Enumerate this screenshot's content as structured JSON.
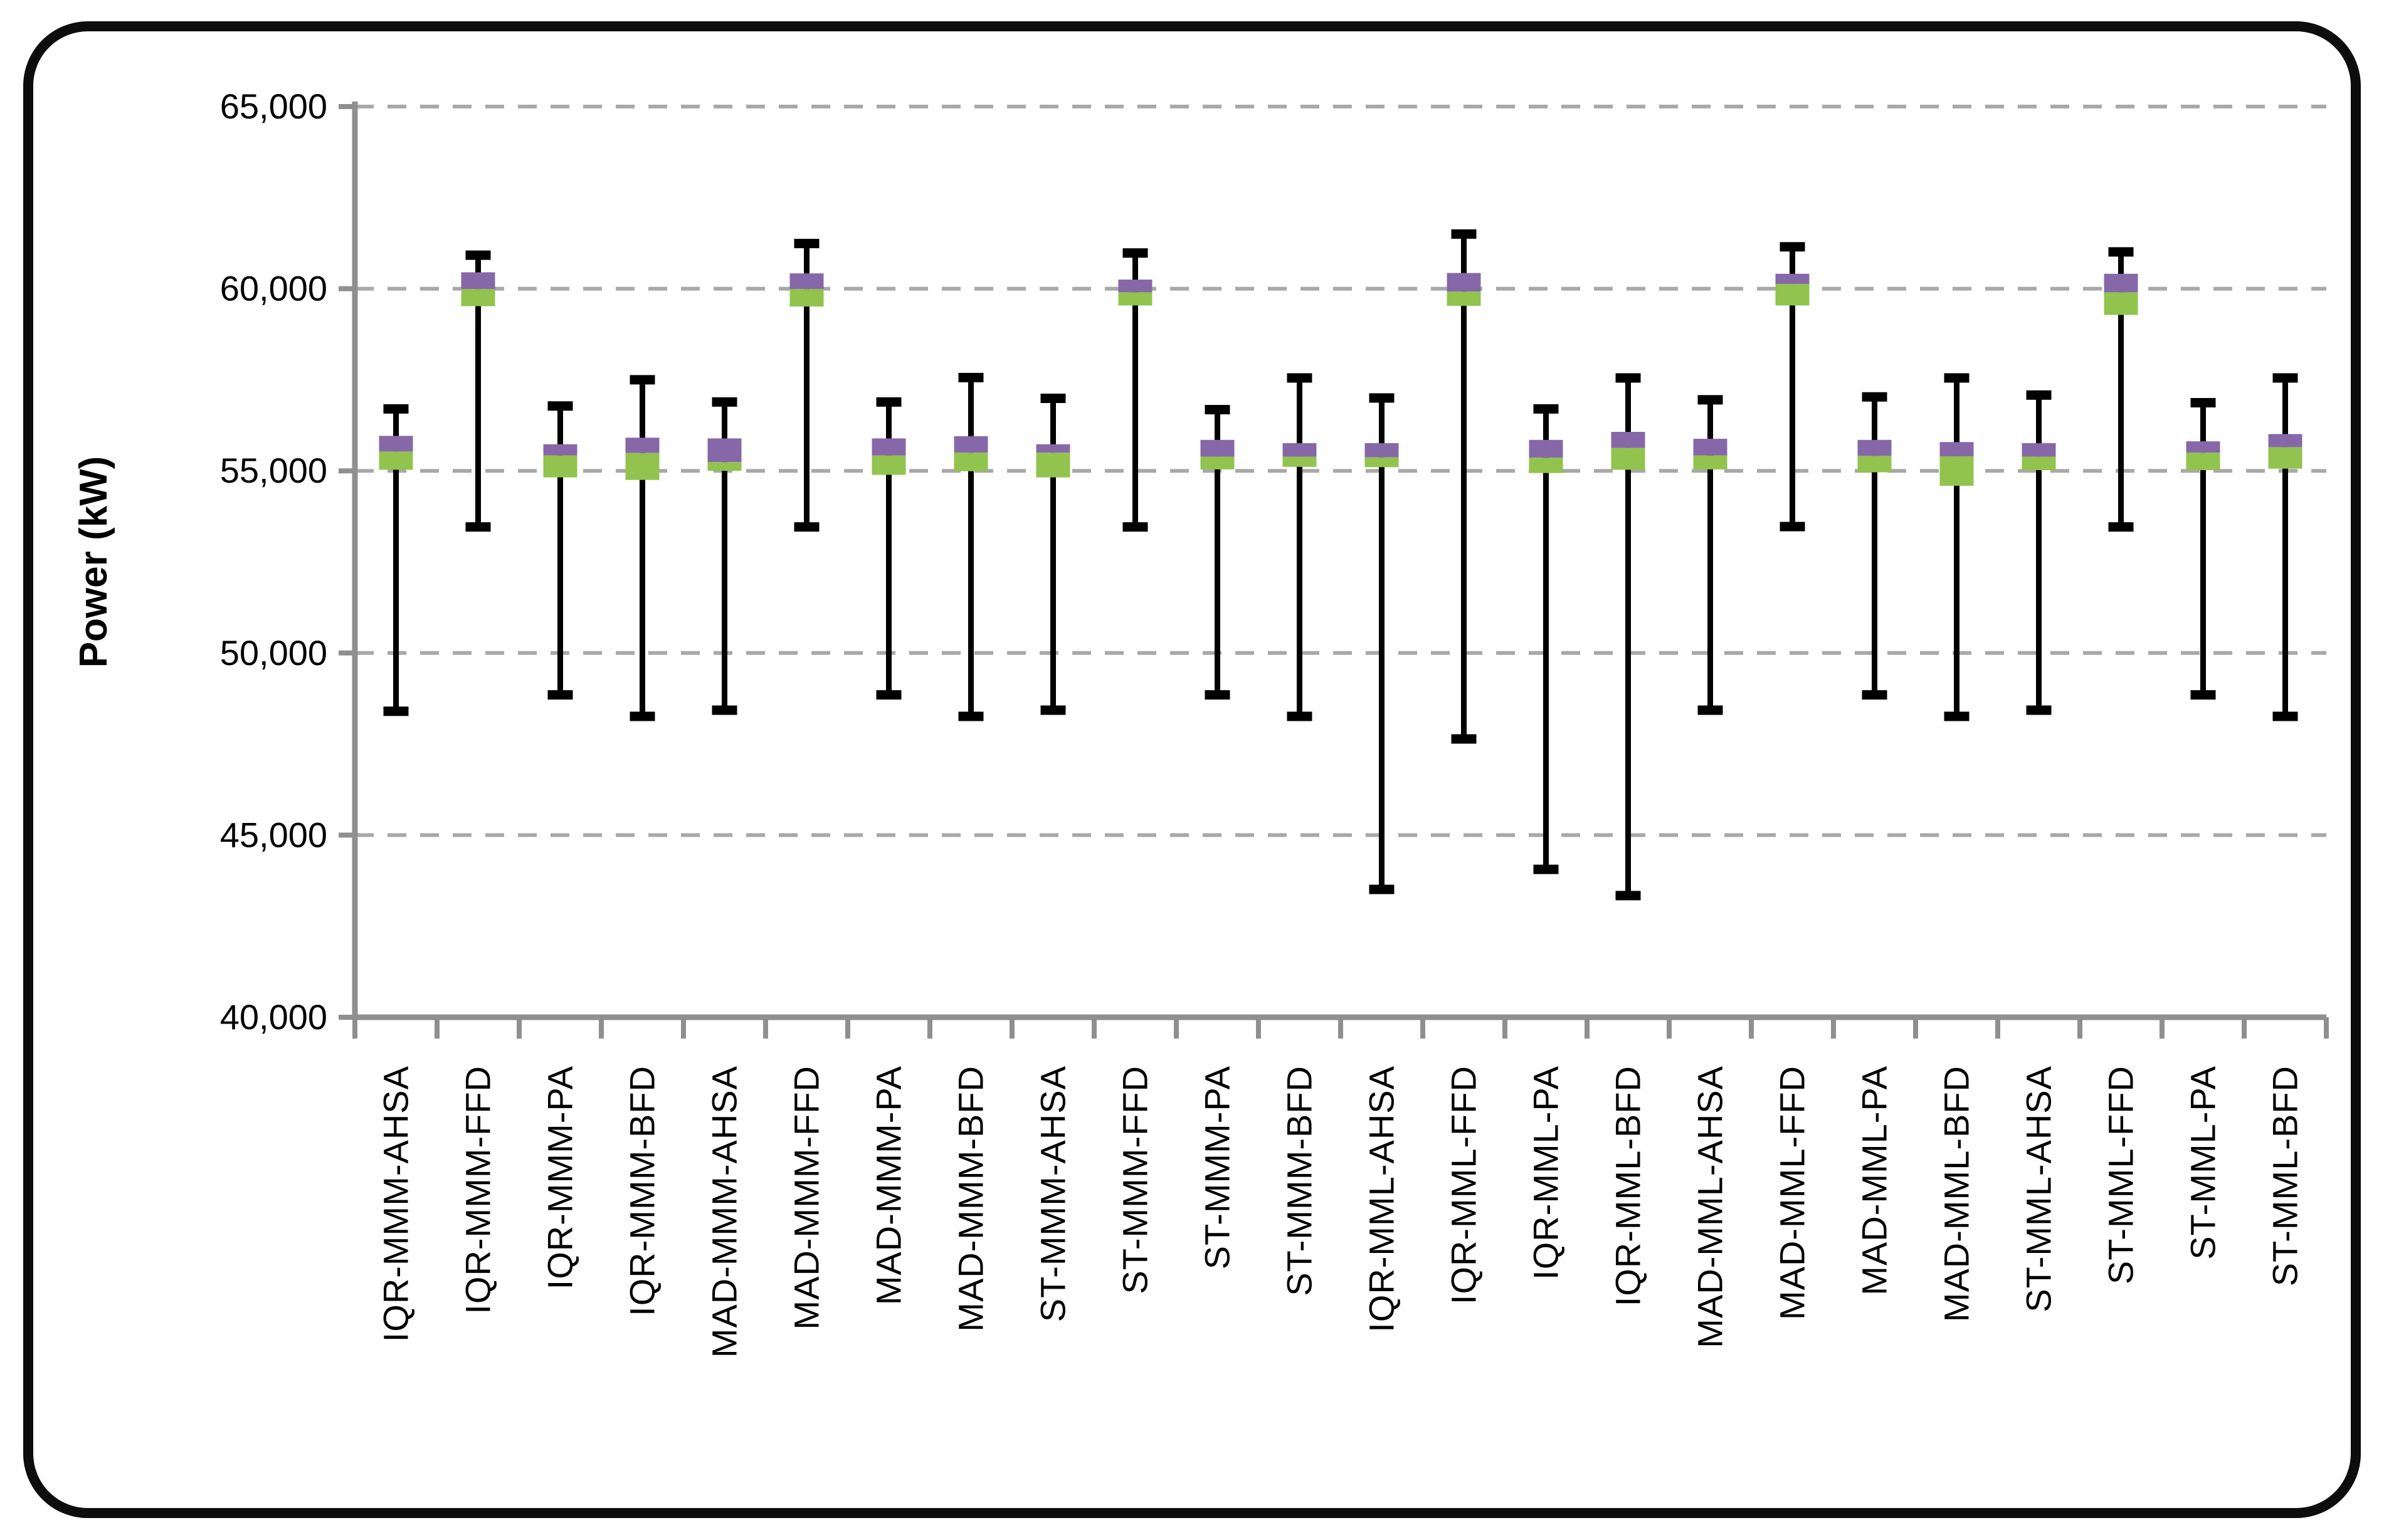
{
  "chart_data": {
    "type": "box-whisker",
    "title": "",
    "xlabel": "",
    "ylabel": "Power (kW)",
    "ylim": [
      40000,
      65000
    ],
    "ytick_step": 5000,
    "ytick_labels": [
      "40,000",
      "45,000",
      "50,000",
      "55,000",
      "60,000",
      "65,000"
    ],
    "grid": "horizontal-dashed",
    "legend": "none",
    "categories": [
      "IQR-MMM-AHSA",
      "IQR-MMM-FFD",
      "IQR-MMM-PA",
      "IQR-MMM-BFD",
      "MAD-MMM-AHSA",
      "MAD-MMM-FFD",
      "MAD-MMM-PA",
      "MAD-MMM-BFD",
      "ST-MMM-AHSA",
      "ST-MMM-FFD",
      "ST-MMM-PA",
      "ST-MMM-BFD",
      "IQR-MML-AHSA",
      "IQR-MML-FFD",
      "IQR-MML-PA",
      "IQR-MML-BFD",
      "MAD-MML-AHSA",
      "MAD-MML-FFD",
      "MAD-MML-PA",
      "MAD-MML-BFD",
      "ST-MML-AHSA",
      "ST-MML-FFD",
      "ST-MML-PA",
      "ST-MML-BFD"
    ],
    "series": [
      {
        "name": "IQR-MMM-AHSA",
        "min": 48400,
        "q1": 55030,
        "median": 55530,
        "q3": 55960,
        "max": 56700
      },
      {
        "name": "IQR-MMM-FFD",
        "min": 53460,
        "q1": 59520,
        "median": 59990,
        "q3": 60450,
        "max": 60920
      },
      {
        "name": "IQR-MMM-PA",
        "min": 48850,
        "q1": 54820,
        "median": 55420,
        "q3": 55730,
        "max": 56780
      },
      {
        "name": "IQR-MMM-BFD",
        "min": 48260,
        "q1": 54750,
        "median": 55490,
        "q3": 55910,
        "max": 57500
      },
      {
        "name": "MAD-MMM-AHSA",
        "min": 48430,
        "q1": 55000,
        "median": 55240,
        "q3": 55890,
        "max": 56890
      },
      {
        "name": "MAD-MMM-FFD",
        "min": 53460,
        "q1": 59510,
        "median": 59990,
        "q3": 60420,
        "max": 61240
      },
      {
        "name": "MAD-MMM-PA",
        "min": 48850,
        "q1": 54890,
        "median": 55420,
        "q3": 55890,
        "max": 56890
      },
      {
        "name": "MAD-MMM-BFD",
        "min": 48260,
        "q1": 54990,
        "median": 55500,
        "q3": 55950,
        "max": 57560
      },
      {
        "name": "ST-MMM-AHSA",
        "min": 48430,
        "q1": 54820,
        "median": 55500,
        "q3": 55730,
        "max": 56990
      },
      {
        "name": "ST-MMM-FFD",
        "min": 53460,
        "q1": 59540,
        "median": 59900,
        "q3": 60250,
        "max": 60980
      },
      {
        "name": "ST-MMM-PA",
        "min": 48850,
        "q1": 55040,
        "median": 55390,
        "q3": 55850,
        "max": 56680
      },
      {
        "name": "ST-MMM-BFD",
        "min": 48260,
        "q1": 55110,
        "median": 55390,
        "q3": 55760,
        "max": 57550
      },
      {
        "name": "IQR-MML-AHSA",
        "min": 43510,
        "q1": 55100,
        "median": 55370,
        "q3": 55760,
        "max": 57000
      },
      {
        "name": "IQR-MML-FFD",
        "min": 47640,
        "q1": 59530,
        "median": 59920,
        "q3": 60430,
        "max": 61500
      },
      {
        "name": "IQR-MML-PA",
        "min": 44060,
        "q1": 54940,
        "median": 55360,
        "q3": 55850,
        "max": 56700
      },
      {
        "name": "IQR-MML-BFD",
        "min": 43340,
        "q1": 55030,
        "median": 55630,
        "q3": 56070,
        "max": 57550
      },
      {
        "name": "MAD-MML-AHSA",
        "min": 48430,
        "q1": 55040,
        "median": 55420,
        "q3": 55880,
        "max": 56950
      },
      {
        "name": "MAD-MML-FFD",
        "min": 53470,
        "q1": 59540,
        "median": 60130,
        "q3": 60410,
        "max": 61150
      },
      {
        "name": "MAD-MML-PA",
        "min": 48850,
        "q1": 54960,
        "median": 55410,
        "q3": 55850,
        "max": 57030
      },
      {
        "name": "MAD-MML-BFD",
        "min": 48260,
        "q1": 54590,
        "median": 55400,
        "q3": 55790,
        "max": 57550
      },
      {
        "name": "ST-MML-AHSA",
        "min": 48430,
        "q1": 55020,
        "median": 55390,
        "q3": 55760,
        "max": 57080
      },
      {
        "name": "ST-MML-FFD",
        "min": 53460,
        "q1": 59280,
        "median": 59900,
        "q3": 60410,
        "max": 61010
      },
      {
        "name": "ST-MML-PA",
        "min": 48850,
        "q1": 55020,
        "median": 55500,
        "q3": 55810,
        "max": 56870
      },
      {
        "name": "ST-MML-BFD",
        "min": 48260,
        "q1": 55060,
        "median": 55650,
        "q3": 56010,
        "max": 57550
      }
    ],
    "colors": {
      "lower_box_green": "#92C34E",
      "upper_box_purple": "#8668A8",
      "whisker_black": "#000000",
      "gridline_gray": "#A8A8A8",
      "axis_gray": "#8F8F8F",
      "frame_black": "#0D0D0D",
      "background": "#FFFFFF"
    },
    "box_meaning": {
      "green_segment": "q1-to-median",
      "purple_segment": "median-to-q3",
      "whisker": "min-to-max"
    }
  }
}
